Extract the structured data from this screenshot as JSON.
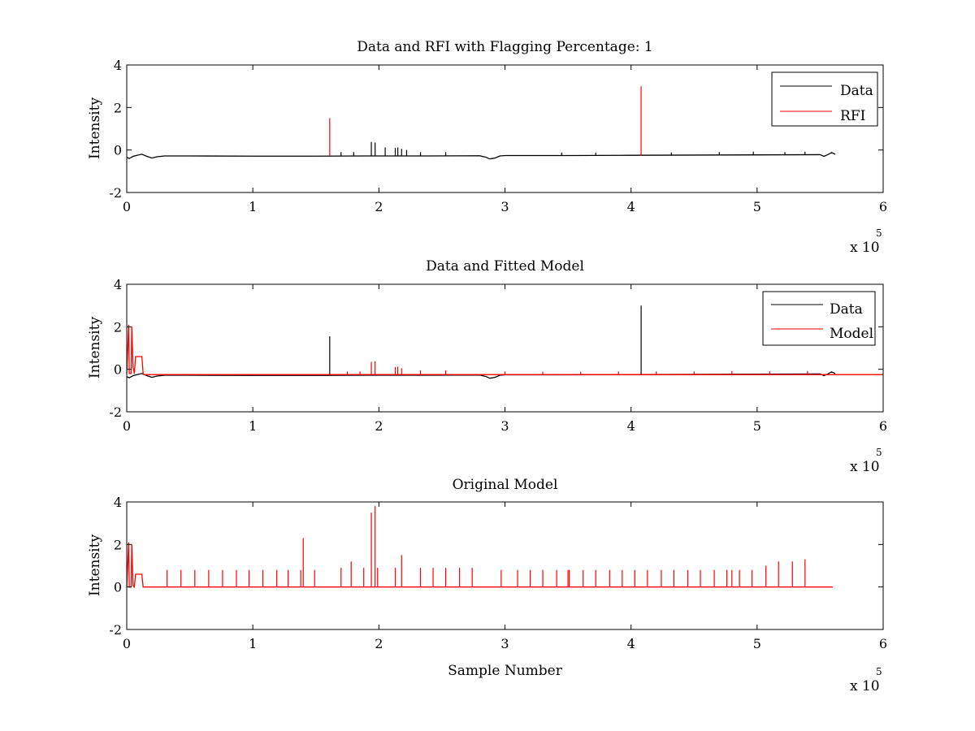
{
  "figure": {
    "background": "#ffffff",
    "colors": {
      "data": "#000000",
      "red": "#ff0000",
      "axes": "#000000"
    }
  },
  "chart_data": [
    {
      "type": "line",
      "title": "Data and RFI with Flagging Percentage: 1",
      "xlabel": "",
      "ylabel": "Intensity",
      "xlim": [
        0,
        600000
      ],
      "ylim": [
        -2,
        4
      ],
      "xticks": [
        0,
        1,
        2,
        3,
        4,
        5,
        6
      ],
      "xticklabels": [
        "0",
        "1",
        "2",
        "3",
        "4",
        "5",
        "6"
      ],
      "yticks": [
        -2,
        0,
        2,
        4
      ],
      "yticklabels": [
        "-2",
        "0",
        "2",
        "4"
      ],
      "x_exponent": {
        "base": "x 10",
        "power": "5"
      },
      "legend": {
        "placement": "top-right",
        "entries": [
          "Data",
          "RFI"
        ]
      },
      "series": [
        {
          "name": "Data",
          "color": "#000000",
          "baseline": {
            "x": [
              0,
              2000,
              5000,
              8000,
              12000,
              16000,
              20000,
              24000,
              30000,
              50000,
              100000,
              150000,
              190000,
              240000,
              280000,
              285000,
              288000,
              292000,
              296000,
              300000,
              350000,
              400000,
              450000,
              500000,
              550000,
              553000,
              556000,
              559000,
              562000
            ],
            "y": [
              -0.35,
              -0.4,
              -0.3,
              -0.25,
              -0.2,
              -0.3,
              -0.38,
              -0.32,
              -0.28,
              -0.28,
              -0.29,
              -0.29,
              -0.28,
              -0.28,
              -0.27,
              -0.34,
              -0.42,
              -0.38,
              -0.28,
              -0.26,
              -0.26,
              -0.25,
              -0.24,
              -0.23,
              -0.22,
              -0.3,
              -0.22,
              -0.12,
              -0.2
            ]
          },
          "spikes": {
            "x": [
              194000,
              197000,
              205000,
              213000,
              215000,
              218000,
              222000,
              170000,
              180000,
              233000,
              253000,
              345000,
              372000,
              432000,
              470000,
              497000,
              522000,
              538000
            ],
            "y": [
              0.38,
              0.35,
              0.12,
              0.1,
              0.12,
              0.05,
              0.0,
              -0.1,
              -0.1,
              -0.1,
              -0.1,
              -0.12,
              -0.12,
              -0.12,
              -0.1,
              -0.08,
              -0.1,
              -0.08
            ]
          }
        },
        {
          "name": "RFI",
          "color": "#ff0000",
          "spikes": {
            "x": [
              161000,
              408000
            ],
            "y": [
              1.5,
              3.0
            ]
          }
        }
      ]
    },
    {
      "type": "line",
      "title": "Data and Fitted Model",
      "xlabel": "",
      "ylabel": "Intensity",
      "xlim": [
        0,
        600000
      ],
      "ylim": [
        -2,
        4
      ],
      "xticks": [
        0,
        1,
        2,
        3,
        4,
        5,
        6
      ],
      "xticklabels": [
        "0",
        "1",
        "2",
        "3",
        "4",
        "5",
        "6"
      ],
      "yticks": [
        -2,
        0,
        2,
        4
      ],
      "yticklabels": [
        "-2",
        "0",
        "2",
        "4"
      ],
      "x_exponent": {
        "base": "x 10",
        "power": "5"
      },
      "legend": {
        "placement": "top-right",
        "entries": [
          "Data",
          "Model"
        ]
      },
      "series": [
        {
          "name": "Data",
          "color": "#000000",
          "baseline": {
            "x": [
              0,
              2000,
              5000,
              8000,
              12000,
              16000,
              20000,
              24000,
              30000,
              50000,
              100000,
              150000,
              190000,
              240000,
              280000,
              285000,
              288000,
              292000,
              296000,
              300000,
              350000,
              400000,
              450000,
              500000,
              550000,
              553000,
              556000,
              559000,
              562000
            ],
            "y": [
              -0.35,
              -0.4,
              -0.3,
              -0.25,
              -0.2,
              -0.3,
              -0.38,
              -0.32,
              -0.28,
              -0.28,
              -0.29,
              -0.29,
              -0.28,
              -0.28,
              -0.27,
              -0.34,
              -0.42,
              -0.38,
              -0.28,
              -0.26,
              -0.26,
              -0.25,
              -0.24,
              -0.23,
              -0.22,
              -0.3,
              -0.22,
              -0.12,
              -0.2
            ]
          },
          "spikes": {
            "x": [
              161000,
              408000
            ],
            "y": [
              1.55,
              3.0
            ]
          }
        },
        {
          "name": "Model",
          "color": "#ff0000",
          "baseline": {
            "x": [
              0,
              1500,
              2000,
              3500,
              4000,
              5000,
              6000,
              7000,
              8000,
              9000,
              10000,
              11000,
              12000,
              13000,
              14000,
              20000,
              600000
            ],
            "y": [
              -0.2,
              2.1,
              -0.2,
              -0.2,
              2.0,
              0.1,
              -0.2,
              0.6,
              0.6,
              0.6,
              0.6,
              0.6,
              0.6,
              -0.2,
              -0.25,
              -0.25,
              -0.25
            ]
          },
          "spikes": {
            "x": [
              194000,
              197000,
              213000,
              215000,
              218000,
              233000,
              253000,
              175000,
              185000,
              300000,
              330000,
              360000,
              390000,
              420000,
              450000,
              480000,
              510000,
              540000
            ],
            "y": [
              0.35,
              0.38,
              0.1,
              0.12,
              0.05,
              -0.05,
              -0.05,
              -0.1,
              -0.1,
              -0.1,
              -0.12,
              -0.12,
              -0.1,
              -0.1,
              -0.1,
              -0.08,
              -0.1,
              -0.08
            ]
          }
        }
      ]
    },
    {
      "type": "line",
      "title": "Original Model",
      "xlabel": "Sample Number",
      "ylabel": "Intensity",
      "xlim": [
        0,
        600000
      ],
      "ylim": [
        -2,
        4
      ],
      "xticks": [
        0,
        1,
        2,
        3,
        4,
        5,
        6
      ],
      "xticklabels": [
        "0",
        "1",
        "2",
        "3",
        "4",
        "5",
        "6"
      ],
      "yticks": [
        -2,
        0,
        2,
        4
      ],
      "yticklabels": [
        "-2",
        "0",
        "2",
        "4"
      ],
      "x_exponent": {
        "base": "x 10",
        "power": "5"
      },
      "series": [
        {
          "name": "",
          "color": "#ff0000",
          "baseline": {
            "x": [
              0,
              1500,
              2000,
              3500,
              4000,
              5000,
              6000,
              7000,
              8000,
              10000,
              12000,
              13000,
              14000,
              560000
            ],
            "y": [
              0.0,
              2.1,
              0.0,
              0.0,
              2.0,
              0.05,
              0.0,
              0.6,
              0.6,
              0.6,
              0.6,
              0.0,
              0.0,
              0.0
            ]
          },
          "spikes": {
            "x": [
              32000,
              43000,
              54000,
              65000,
              76000,
              87000,
              97000,
              108000,
              119000,
              128000,
              138000,
              149000,
              170000,
              178000,
              188000,
              194000,
              197000,
              199000,
              213000,
              218000,
              233000,
              243000,
              253000,
              264000,
              274000,
              297000,
              310000,
              320000,
              330000,
              341000,
              351000,
              362000,
              372000,
              383000,
              393000,
              403000,
              413000,
              424000,
              434000,
              445000,
              455000,
              466000,
              476000,
              486000,
              496000,
              507000,
              517000,
              528000,
              538000
            ],
            "y": [
              0.8,
              0.8,
              0.8,
              0.8,
              0.8,
              0.8,
              0.8,
              0.8,
              0.8,
              0.8,
              0.8,
              0.8,
              0.9,
              1.2,
              0.9,
              3.5,
              3.8,
              0.9,
              0.9,
              1.5,
              0.9,
              0.9,
              0.9,
              0.9,
              0.9,
              0.8,
              0.8,
              0.8,
              0.8,
              0.8,
              0.8,
              0.8,
              0.8,
              0.8,
              0.8,
              0.8,
              0.8,
              0.8,
              0.8,
              0.8,
              0.8,
              0.8,
              0.8,
              0.8,
              0.8,
              1.0,
              1.2,
              1.2,
              1.3
            ]
          },
          "tall_spike_ext": {
            "x": [
              140000,
              350000,
              480000
            ],
            "y": [
              2.3,
              0.8,
              0.8
            ]
          }
        }
      ]
    }
  ]
}
